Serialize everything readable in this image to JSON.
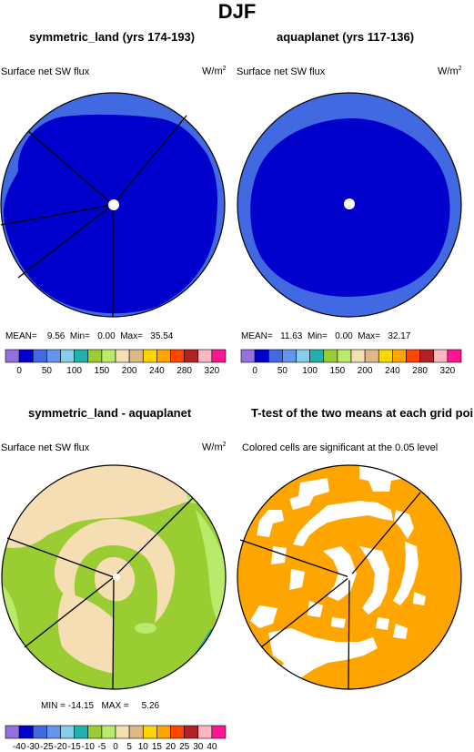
{
  "figure": {
    "title": "DJF"
  },
  "panels": {
    "symmetric_land": {
      "title": "symmetric_land (yrs 174-193)",
      "variable": "Surface net SW flux",
      "units_base": "W/m",
      "units_exp": "2",
      "stats": {
        "mean_label": "MEAN=",
        "mean": "9.56",
        "min_label": "Min=",
        "min": "0.00",
        "max_label": "Max=",
        "max": "35.54"
      },
      "fill_colors": [
        "#4169e1",
        "#0000cd"
      ]
    },
    "aquaplanet": {
      "title": "aquaplanet (yrs 117-136)",
      "variable": "Surface net SW flux",
      "units_base": "W/m",
      "units_exp": "2",
      "stats": {
        "mean_label": "MEAN=",
        "mean": "11.63",
        "min_label": "Min=",
        "min": "0.00",
        "max_label": "Max=",
        "max": "32.17"
      },
      "fill_colors": [
        "#4169e1",
        "#0000cd"
      ]
    },
    "difference": {
      "title": "symmetric_land - aquaplanet",
      "variable": "Surface net SW flux",
      "units_base": "W/m",
      "units_exp": "2",
      "stats": {
        "min_label": "MIN =",
        "min": "-14.15",
        "max_label": "MAX =",
        "max": "5.26"
      },
      "fill_colors": [
        "#f5deb3",
        "#9acd32",
        "#7ebd3c",
        "#b9ea6a",
        "#20b2aa"
      ]
    },
    "ttest": {
      "title": "T-test of the two means at each grid point",
      "caption": "Colored cells are significant at the 0.05 level",
      "fill_colors": [
        "#ffa500",
        "#ffffff"
      ]
    }
  },
  "colorbars": {
    "top": {
      "colors": [
        "#9370db",
        "#0000cd",
        "#4169e1",
        "#6495ed",
        "#87ceeb",
        "#20b2aa",
        "#9acd32",
        "#b9ea6a",
        "#f5deb3",
        "#deb887",
        "#ffd700",
        "#ffa500",
        "#ff4500",
        "#b22222",
        "#ffb6c1",
        "#ff1493"
      ],
      "labels": [
        "0",
        "50",
        "100",
        "150",
        "200",
        "240",
        "280",
        "320"
      ]
    },
    "bottom": {
      "colors": [
        "#9370db",
        "#0000cd",
        "#4169e1",
        "#6495ed",
        "#87ceeb",
        "#20b2aa",
        "#9acd32",
        "#b9ea6a",
        "#f5deb3",
        "#deb887",
        "#ffd700",
        "#ffa500",
        "#ff4500",
        "#b22222",
        "#ffb6c1",
        "#ff1493"
      ],
      "labels": [
        "-40",
        "-30",
        "-25",
        "-20",
        "-15",
        "-10",
        "-5",
        "0",
        "5",
        "10",
        "15",
        "20",
        "25",
        "30",
        "40"
      ]
    }
  }
}
